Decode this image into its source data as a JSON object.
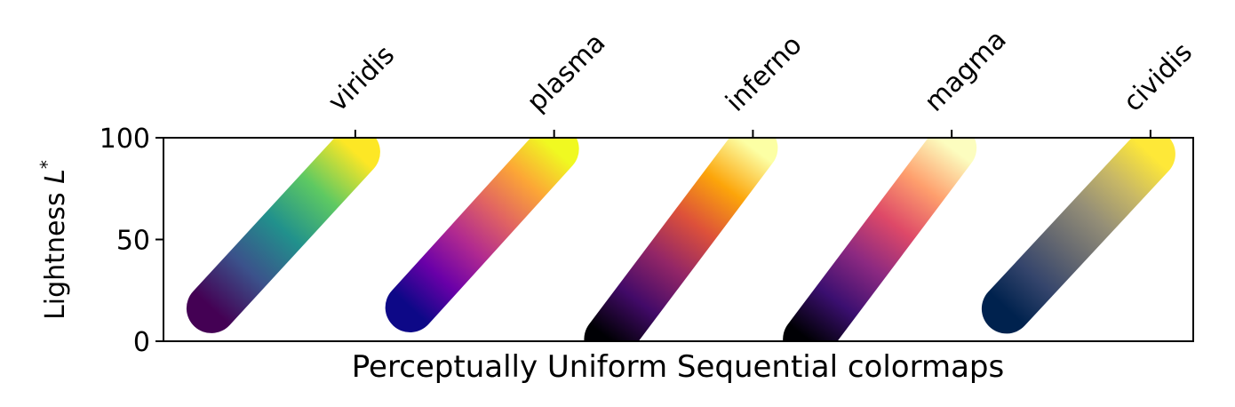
{
  "chart_data": {
    "type": "scatter",
    "title": "",
    "xlabel": "Perceptually Uniform Sequential colormaps",
    "ylabel_text": "Lightness ",
    "ylabel_symbol": "L",
    "ylabel_superscript": "*",
    "ylim": [
      0,
      100
    ],
    "y_ticks": [
      0,
      50,
      100
    ],
    "x_ticks": [
      "viridis",
      "plasma",
      "inferno",
      "magma",
      "cividis"
    ],
    "grid": false,
    "series": [
      {
        "name": "viridis",
        "lightness_start": 16.2,
        "lightness_end": 93.0,
        "colors": [
          "#440154",
          "#3b528b",
          "#21918c",
          "#5ec962",
          "#fde725"
        ]
      },
      {
        "name": "plasma",
        "lightness_start": 16.6,
        "lightness_end": 94.5,
        "colors": [
          "#0d0887",
          "#6a00a8",
          "#b12a90",
          "#e16462",
          "#fca636",
          "#f0f921"
        ]
      },
      {
        "name": "inferno",
        "lightness_start": 1.0,
        "lightness_end": 95.0,
        "colors": [
          "#000004",
          "#420a68",
          "#932667",
          "#dd513a",
          "#fca50a",
          "#fcffa4"
        ]
      },
      {
        "name": "magma",
        "lightness_start": 1.0,
        "lightness_end": 95.0,
        "colors": [
          "#000004",
          "#3b0f70",
          "#8c2981",
          "#de4968",
          "#fe9f6d",
          "#fcfdbf"
        ]
      },
      {
        "name": "cividis",
        "lightness_start": 16.0,
        "lightness_end": 92.0,
        "colors": [
          "#00224e",
          "#35456c",
          "#666970",
          "#948e77",
          "#c8b866",
          "#fee838"
        ]
      }
    ]
  }
}
